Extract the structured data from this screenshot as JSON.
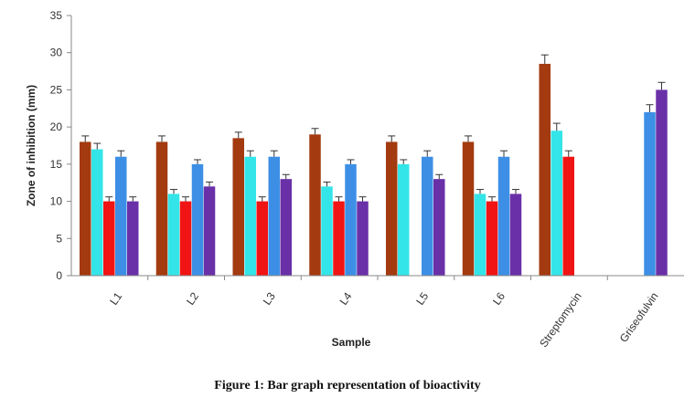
{
  "caption": "Figure 1: Bar graph representation of bioactivity",
  "chart_data": {
    "type": "bar",
    "xlabel": "Sample",
    "ylabel": "Zone of inhibition  (mm)",
    "ylim": [
      0,
      35
    ],
    "yticks": [
      0,
      5,
      10,
      15,
      20,
      25,
      30,
      35
    ],
    "categories": [
      "L1",
      "L2",
      "L3",
      "L4",
      "L5",
      "L6",
      "Streptomycin",
      "Griseofulvin"
    ],
    "series": [
      {
        "color": "#a33a10",
        "values": [
          18,
          18,
          18.5,
          19,
          18,
          18,
          28.5,
          null
        ],
        "errors": [
          0.8,
          0.8,
          0.8,
          0.8,
          0.8,
          0.8,
          1.2,
          null
        ]
      },
      {
        "color": "#33e5e8",
        "values": [
          17,
          11,
          16,
          12,
          15,
          11,
          19.5,
          null
        ],
        "errors": [
          0.8,
          0.6,
          0.8,
          0.6,
          0.6,
          0.6,
          1.0,
          null
        ]
      },
      {
        "color": "#f01414",
        "values": [
          10,
          10,
          10,
          10,
          null,
          10,
          16,
          null
        ],
        "errors": [
          0.6,
          0.6,
          0.6,
          0.6,
          null,
          0.6,
          0.8,
          null
        ]
      },
      {
        "color": "#3d8fe6",
        "values": [
          16,
          15,
          16,
          15,
          16,
          16,
          null,
          22
        ],
        "errors": [
          0.8,
          0.6,
          0.8,
          0.6,
          0.8,
          0.8,
          null,
          1.0
        ]
      },
      {
        "color": "#6a30a8",
        "values": [
          10,
          12,
          13,
          10,
          13,
          11,
          null,
          25
        ],
        "errors": [
          0.6,
          0.6,
          0.6,
          0.6,
          0.6,
          0.6,
          null,
          1.0
        ]
      }
    ],
    "grid": false,
    "legend": "none",
    "error_bars": true
  }
}
